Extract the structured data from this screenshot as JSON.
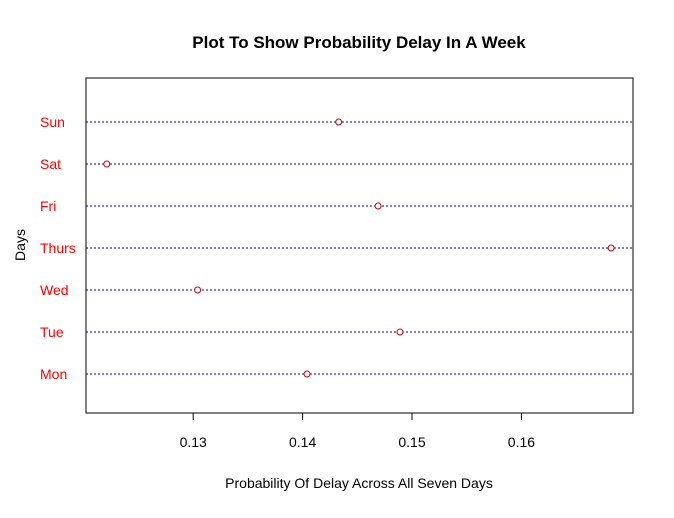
{
  "chart_data": {
    "type": "scatter",
    "subtype": "dotchart",
    "title": "Plot To Show Probability Delay In A Week",
    "xlabel": "Probability Of Delay Across All Seven Days",
    "ylabel": "Days",
    "categories": [
      "Mon",
      "Tue",
      "Wed",
      "Thurs",
      "Fri",
      "Sat",
      "Sun"
    ],
    "values": [
      0.1404,
      0.1489,
      0.1304,
      0.1682,
      0.1469,
      0.1221,
      0.1433
    ],
    "xlim": [
      0.1202,
      0.1702
    ],
    "xticks": [
      0.13,
      0.14,
      0.15,
      0.16
    ],
    "xtick_labels": [
      "0.13",
      "0.14",
      "0.15",
      "0.16"
    ],
    "grid": "dotted horizontal line per category",
    "colors": {
      "label": "#ff0000",
      "point": "#cc0000",
      "guide": "#00008b",
      "axis": "#000000"
    }
  }
}
